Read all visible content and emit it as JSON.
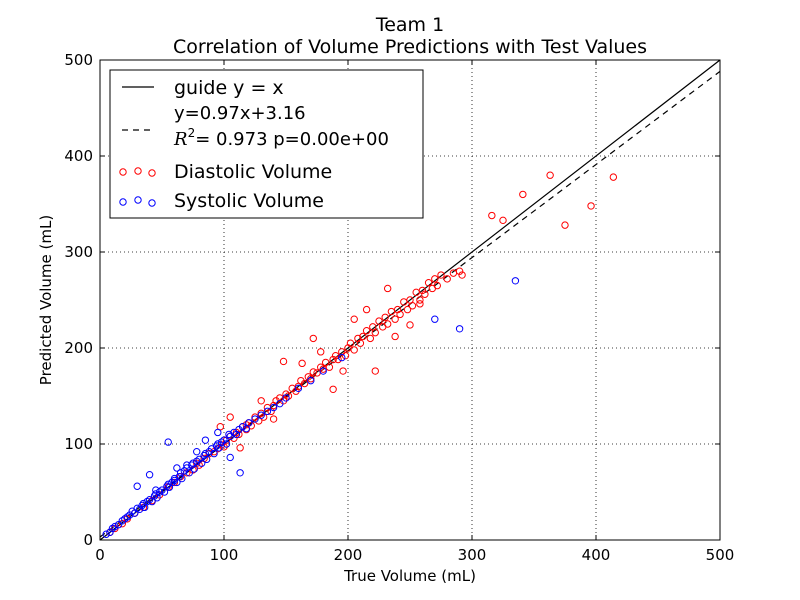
{
  "chart_data": {
    "type": "scatter",
    "title": "Team 1",
    "subtitle": "Correlation of Volume Predictions with Test Values",
    "xlabel": "True Volume (mL)",
    "ylabel": "Predicted Volume (mL)",
    "xlim": [
      0,
      500
    ],
    "ylim": [
      0,
      500
    ],
    "xticks": [
      "0",
      "100",
      "200",
      "300",
      "400",
      "500"
    ],
    "yticks": [
      "0",
      "100",
      "200",
      "300",
      "400",
      "500"
    ],
    "grid": true,
    "legend_position": "top-left",
    "legend": {
      "guide_label": "guide y = x",
      "fit_line1": "y=0.97x+3.16",
      "fit_line2_math": "R",
      "fit_line2_sup": "2",
      "fit_line2_rest": "= 0.973 p=0.00e+00",
      "diastolic_label": "Diastolic Volume",
      "systolic_label": "Systolic Volume"
    },
    "lines": {
      "guide": {
        "slope": 1.0,
        "intercept": 0.0,
        "style": "solid",
        "color": "#000000"
      },
      "fit": {
        "slope": 0.97,
        "intercept": 3.16,
        "style": "dashed",
        "color": "#000000"
      }
    },
    "series": [
      {
        "name": "Diastolic Volume",
        "color": "#ff0000",
        "marker": "open-circle",
        "x": [
          8,
          12,
          18,
          22,
          28,
          35,
          42,
          48,
          55,
          60,
          65,
          70,
          75,
          78,
          80,
          84,
          88,
          92,
          95,
          98,
          100,
          102,
          105,
          108,
          110,
          112,
          115,
          118,
          120,
          122,
          125,
          128,
          130,
          132,
          135,
          138,
          140,
          142,
          145,
          148,
          150,
          152,
          155,
          158,
          160,
          162,
          165,
          168,
          170,
          172,
          175,
          178,
          180,
          182,
          185,
          188,
          190,
          192,
          195,
          198,
          200,
          202,
          205,
          208,
          210,
          212,
          215,
          218,
          220,
          222,
          225,
          228,
          230,
          232,
          235,
          238,
          240,
          242,
          245,
          248,
          250,
          252,
          255,
          258,
          260,
          262,
          265,
          268,
          270,
          272,
          275,
          280,
          285,
          290,
          292,
          316,
          325,
          341,
          363,
          375,
          396,
          414,
          118,
          130,
          148,
          172,
          188,
          205,
          222,
          238,
          250,
          97,
          105,
          113,
          140,
          163,
          178,
          196,
          215,
          232,
          258
        ],
        "y": [
          8,
          12,
          17,
          22,
          28,
          34,
          41,
          47,
          55,
          60,
          66,
          70,
          73,
          80,
          78,
          85,
          90,
          92,
          95,
          99,
          97,
          104,
          108,
          106,
          112,
          110,
          118,
          115,
          122,
          119,
          128,
          124,
          132,
          128,
          138,
          134,
          140,
          145,
          148,
          145,
          152,
          150,
          158,
          155,
          160,
          166,
          163,
          170,
          168,
          175,
          174,
          180,
          178,
          185,
          180,
          188,
          192,
          188,
          196,
          192,
          200,
          205,
          198,
          210,
          205,
          212,
          218,
          210,
          222,
          216,
          228,
          222,
          232,
          225,
          238,
          230,
          240,
          235,
          248,
          240,
          250,
          244,
          258,
          246,
          260,
          256,
          268,
          262,
          272,
          265,
          276,
          272,
          278,
          280,
          276,
          338,
          333,
          360,
          380,
          328,
          348,
          378,
          120,
          145,
          186,
          210,
          157,
          230,
          176,
          212,
          224,
          118,
          128,
          96,
          126,
          184,
          196,
          176,
          240,
          262,
          250
        ]
      },
      {
        "name": "Systolic Volume",
        "color": "#0000ff",
        "marker": "open-circle",
        "x": [
          5,
          8,
          10,
          12,
          15,
          18,
          20,
          22,
          24,
          26,
          28,
          30,
          32,
          34,
          35,
          36,
          38,
          40,
          42,
          44,
          45,
          46,
          48,
          50,
          52,
          54,
          55,
          56,
          58,
          60,
          62,
          64,
          65,
          66,
          68,
          70,
          72,
          74,
          75,
          76,
          78,
          80,
          82,
          84,
          85,
          86,
          88,
          90,
          92,
          94,
          95,
          96,
          98,
          100,
          102,
          104,
          105,
          108,
          110,
          112,
          115,
          118,
          120,
          125,
          130,
          135,
          140,
          145,
          150,
          160,
          170,
          180,
          195,
          270,
          290,
          335,
          30,
          40,
          55,
          60,
          70,
          85,
          105,
          113,
          45,
          62,
          78,
          95
        ],
        "y": [
          6,
          8,
          12,
          14,
          16,
          20,
          22,
          24,
          26,
          30,
          28,
          33,
          32,
          36,
          38,
          34,
          40,
          42,
          40,
          46,
          48,
          44,
          50,
          52,
          50,
          56,
          58,
          55,
          60,
          64,
          60,
          66,
          70,
          64,
          72,
          75,
          70,
          78,
          80,
          74,
          82,
          84,
          80,
          88,
          90,
          84,
          92,
          95,
          90,
          98,
          100,
          96,
          102,
          104,
          100,
          110,
          108,
          112,
          110,
          115,
          118,
          116,
          122,
          126,
          130,
          134,
          138,
          142,
          148,
          158,
          166,
          176,
          190,
          230,
          220,
          270,
          56,
          68,
          102,
          62,
          78,
          104,
          86,
          70,
          52,
          75,
          92,
          112
        ]
      }
    ]
  }
}
